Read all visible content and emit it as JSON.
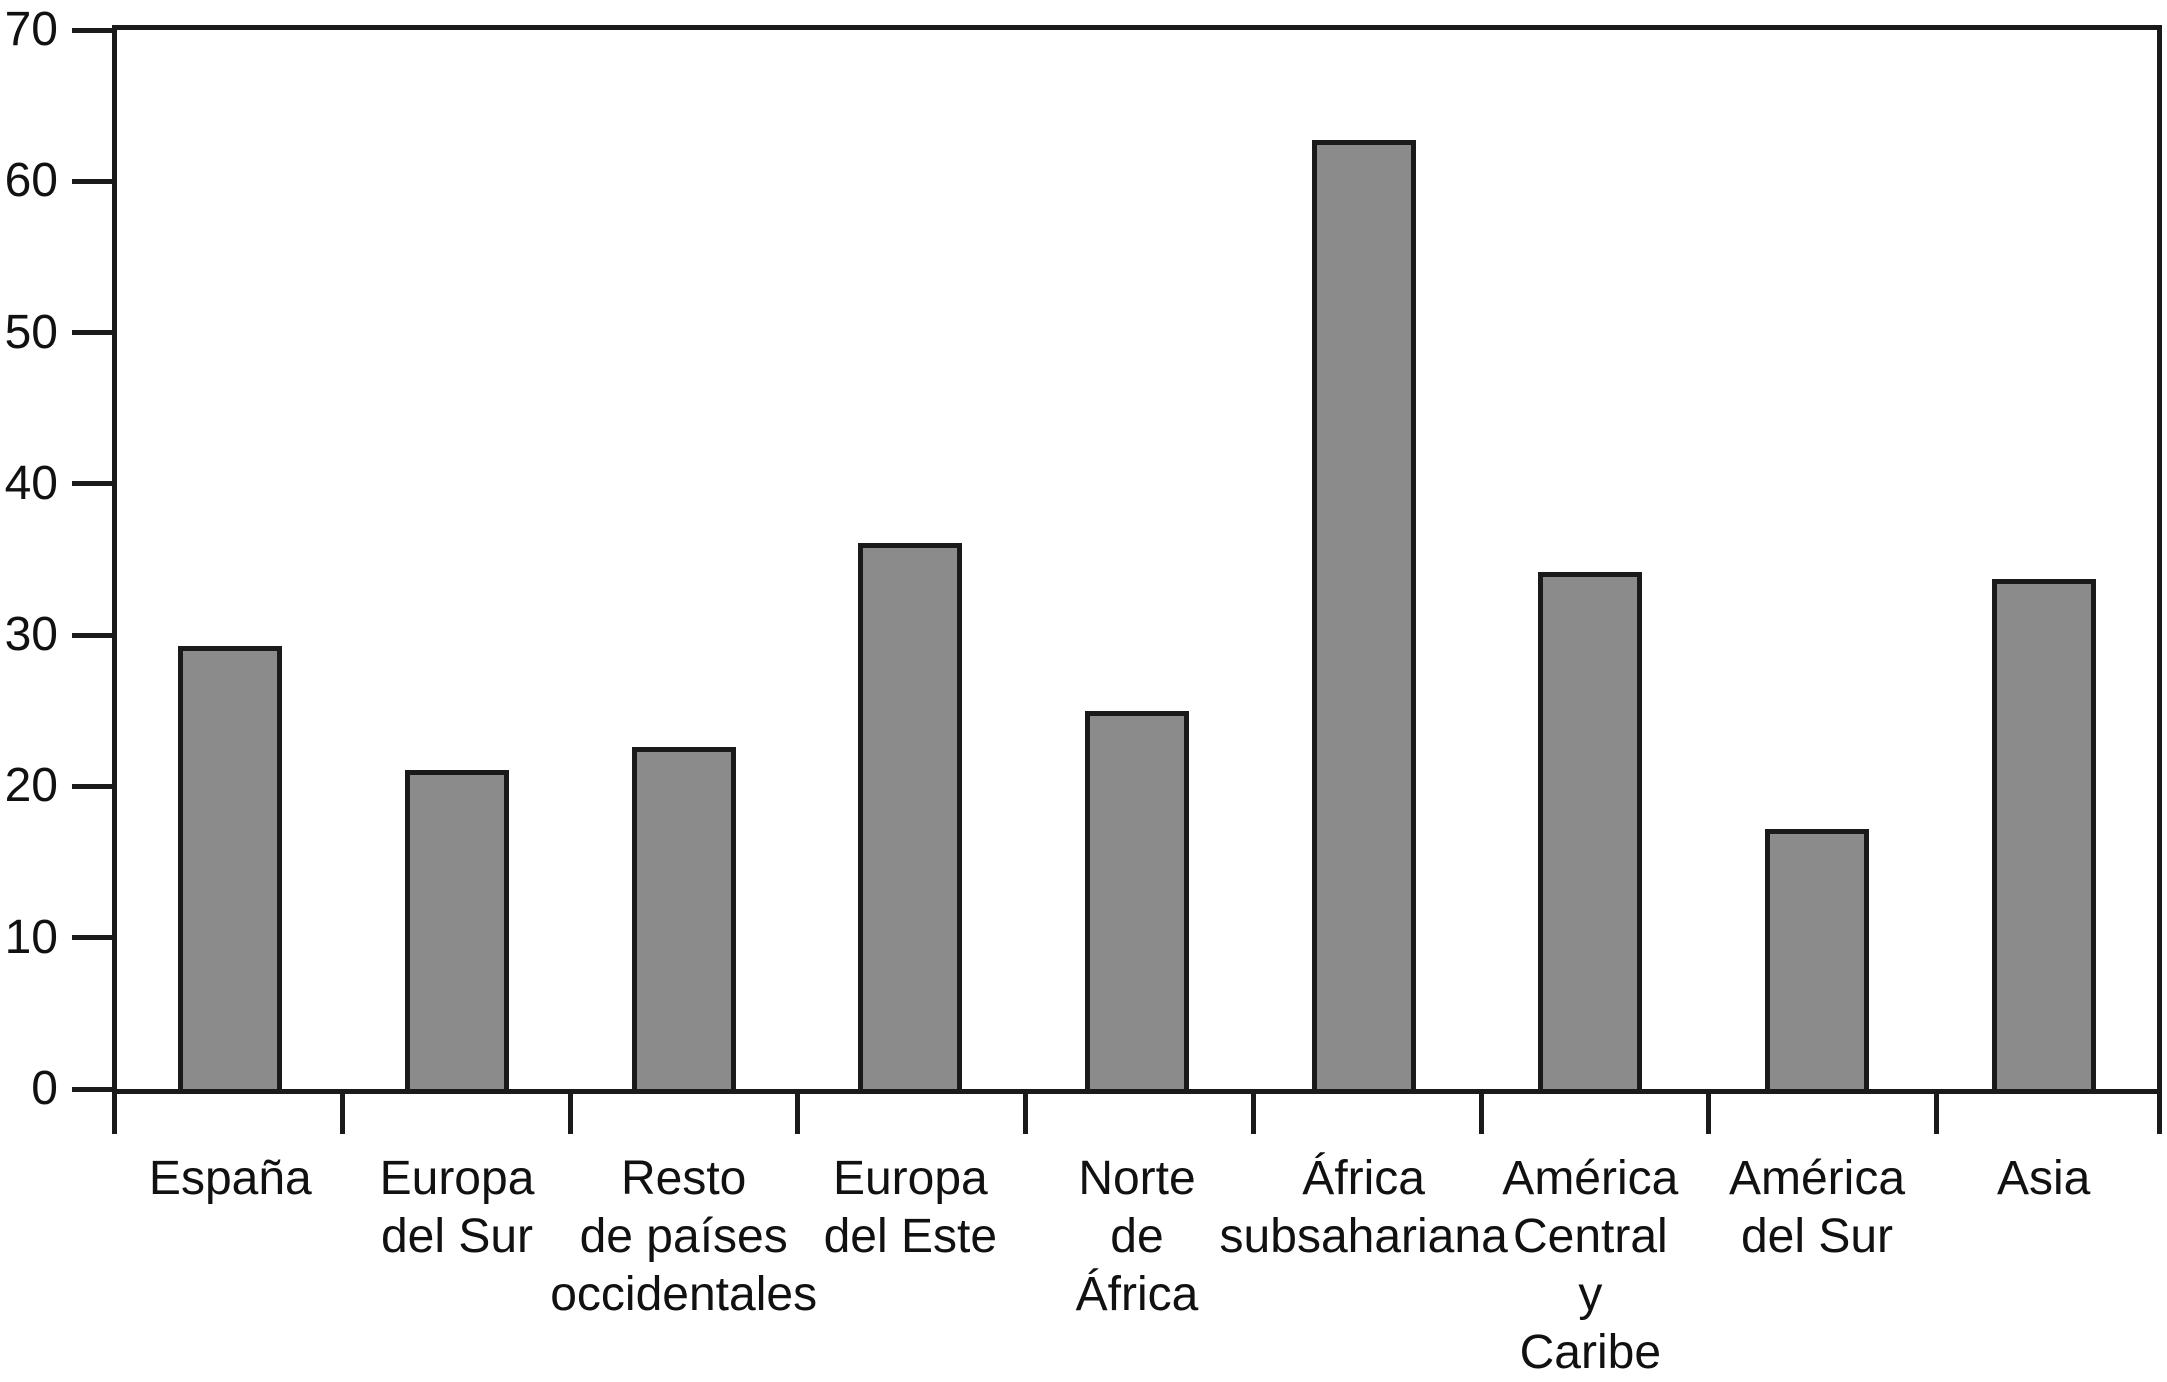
{
  "chart_data": {
    "type": "bar",
    "title": "",
    "xlabel": "",
    "ylabel": "",
    "ylim": [
      0,
      70
    ],
    "yticks": [
      0,
      10,
      20,
      30,
      40,
      50,
      60,
      70
    ],
    "grid": false,
    "legend": false,
    "plot_frame": "box",
    "categories": [
      "España",
      "Europa del Sur",
      "Resto de países occidentales",
      "Europa del Este",
      "Norte de África",
      "África subsahariana",
      "América Central y Caribe",
      "América del Sur",
      "Asia"
    ],
    "category_label_lines": [
      [
        "España"
      ],
      [
        "Europa",
        "del Sur"
      ],
      [
        "Resto",
        "de países",
        "occidentales"
      ],
      [
        "Europa",
        "del Este"
      ],
      [
        "Norte",
        "de",
        "África"
      ],
      [
        "África",
        "subsahariana"
      ],
      [
        "América",
        "Central",
        "y",
        "Caribe"
      ],
      [
        "América",
        "del Sur"
      ],
      [
        "Asia"
      ]
    ],
    "values": [
      29.3,
      21.1,
      22.6,
      36.1,
      25.0,
      62.7,
      34.2,
      17.2,
      33.7
    ],
    "colors": {
      "bar_fill": "#8b8b8b",
      "bar_border": "#1a1a1a",
      "axis": "#1a1a1a",
      "text": "#111111",
      "background": "#ffffff"
    }
  }
}
